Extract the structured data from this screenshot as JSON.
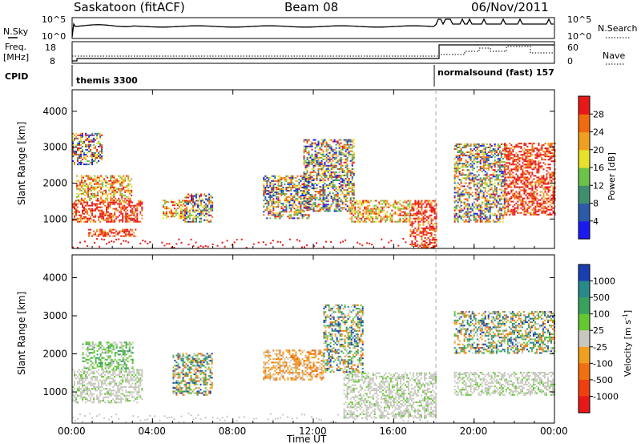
{
  "header": {
    "left": "Saskatoon (fitACF)",
    "center": "Beam 08",
    "right": "06/Nov/2011"
  },
  "top_panel": {
    "left_label": "N.Sky",
    "right_label": "N.Search",
    "left_ticks": [
      "10^5",
      "10^0"
    ],
    "right_ticks": [
      "10^5",
      "10^0"
    ]
  },
  "freq_panel": {
    "left_label_1": "Freq.",
    "left_label_2": "[MHz]",
    "right_label": "Nave",
    "left_ticks": [
      "18",
      "8"
    ],
    "right_ticks": [
      "60",
      "0"
    ]
  },
  "cpid": {
    "label": "CPID",
    "segments": [
      {
        "text": "themis 3300",
        "start_h": 0.0
      },
      {
        "text": "normalsound (fast) 157",
        "start_h": 18.1
      }
    ]
  },
  "axes": {
    "ylabel": "Slant Range [km]",
    "xlabel": "Time UT",
    "y_ticks": [
      "1000",
      "2000",
      "3000",
      "4000"
    ],
    "x_ticks": [
      "00:00",
      "04:00",
      "08:00",
      "12:00",
      "16:00",
      "20:00",
      "00:00"
    ]
  },
  "power_colorbar": {
    "title": "Power [dB]",
    "labels": [
      "4",
      "8",
      "12",
      "16",
      "20",
      "24",
      "28"
    ],
    "colors": [
      "#1a1af0",
      "#2b5aa8",
      "#3f8f6e",
      "#6cc24a",
      "#e8e02a",
      "#f0a020",
      "#f06a10",
      "#e81818"
    ]
  },
  "velocity_colorbar": {
    "title": "Velocity [m s",
    "title_sup": "-1",
    "title_end": "]",
    "labels": [
      "1000",
      "500",
      "100",
      "25",
      "-25",
      "-100",
      "-500",
      "-1000"
    ],
    "colors": [
      "#1a3fb0",
      "#2a8a8a",
      "#3aa060",
      "#64c830",
      "#c8c8c0",
      "#f0a020",
      "#f07010",
      "#f04010",
      "#e81818"
    ]
  },
  "chart_data": {
    "type": "heatmap",
    "x_range_hours": [
      0,
      24
    ],
    "y_range_km": [
      180,
      4600
    ],
    "dashed_line_hour": 18.1,
    "power_regions": [
      {
        "t0": 0.0,
        "t1": 3.5,
        "r0": 900,
        "r1": 1500,
        "level": "high"
      },
      {
        "t0": 0.2,
        "t1": 3.0,
        "r0": 1500,
        "r1": 2200,
        "level": "mid"
      },
      {
        "t0": 0.8,
        "t1": 3.2,
        "r0": 500,
        "r1": 700,
        "level": "high"
      },
      {
        "t0": 0.0,
        "t1": 1.5,
        "r0": 2500,
        "r1": 3400,
        "level": "mixed"
      },
      {
        "t0": 4.5,
        "t1": 5.5,
        "r0": 1000,
        "r1": 1500,
        "level": "mid"
      },
      {
        "t0": 5.5,
        "t1": 7.0,
        "r0": 900,
        "r1": 1700,
        "level": "mixed"
      },
      {
        "t0": 9.5,
        "t1": 11.8,
        "r0": 1000,
        "r1": 2200,
        "level": "mixed"
      },
      {
        "t0": 11.5,
        "t1": 14.0,
        "r0": 1200,
        "r1": 3200,
        "level": "mixed"
      },
      {
        "t0": 13.8,
        "t1": 16.8,
        "r0": 900,
        "r1": 1500,
        "level": "mid"
      },
      {
        "t0": 16.8,
        "t1": 18.1,
        "r0": 180,
        "r1": 1500,
        "level": "high"
      },
      {
        "t0": 19.0,
        "t1": 21.5,
        "r0": 900,
        "r1": 3100,
        "level": "mixed"
      },
      {
        "t0": 21.5,
        "t1": 24.0,
        "r0": 1100,
        "r1": 3100,
        "level": "high"
      }
    ],
    "velocity_regions": [
      {
        "t0": 0.0,
        "t1": 3.5,
        "r0": 700,
        "r1": 1600,
        "level": "gray"
      },
      {
        "t0": 0.5,
        "t1": 3.0,
        "r0": 1600,
        "r1": 2300,
        "level": "green"
      },
      {
        "t0": 5.0,
        "t1": 7.0,
        "r0": 900,
        "r1": 2000,
        "level": "mixed"
      },
      {
        "t0": 9.5,
        "t1": 12.5,
        "r0": 1300,
        "r1": 2100,
        "level": "orange"
      },
      {
        "t0": 12.5,
        "t1": 14.5,
        "r0": 1500,
        "r1": 3300,
        "level": "mixed"
      },
      {
        "t0": 13.5,
        "t1": 18.1,
        "r0": 300,
        "r1": 1500,
        "level": "gray"
      },
      {
        "t0": 19.0,
        "t1": 24.0,
        "r0": 900,
        "r1": 1500,
        "level": "gray"
      },
      {
        "t0": 19.0,
        "t1": 24.0,
        "r0": 2000,
        "r1": 3100,
        "level": "mixed"
      }
    ]
  }
}
